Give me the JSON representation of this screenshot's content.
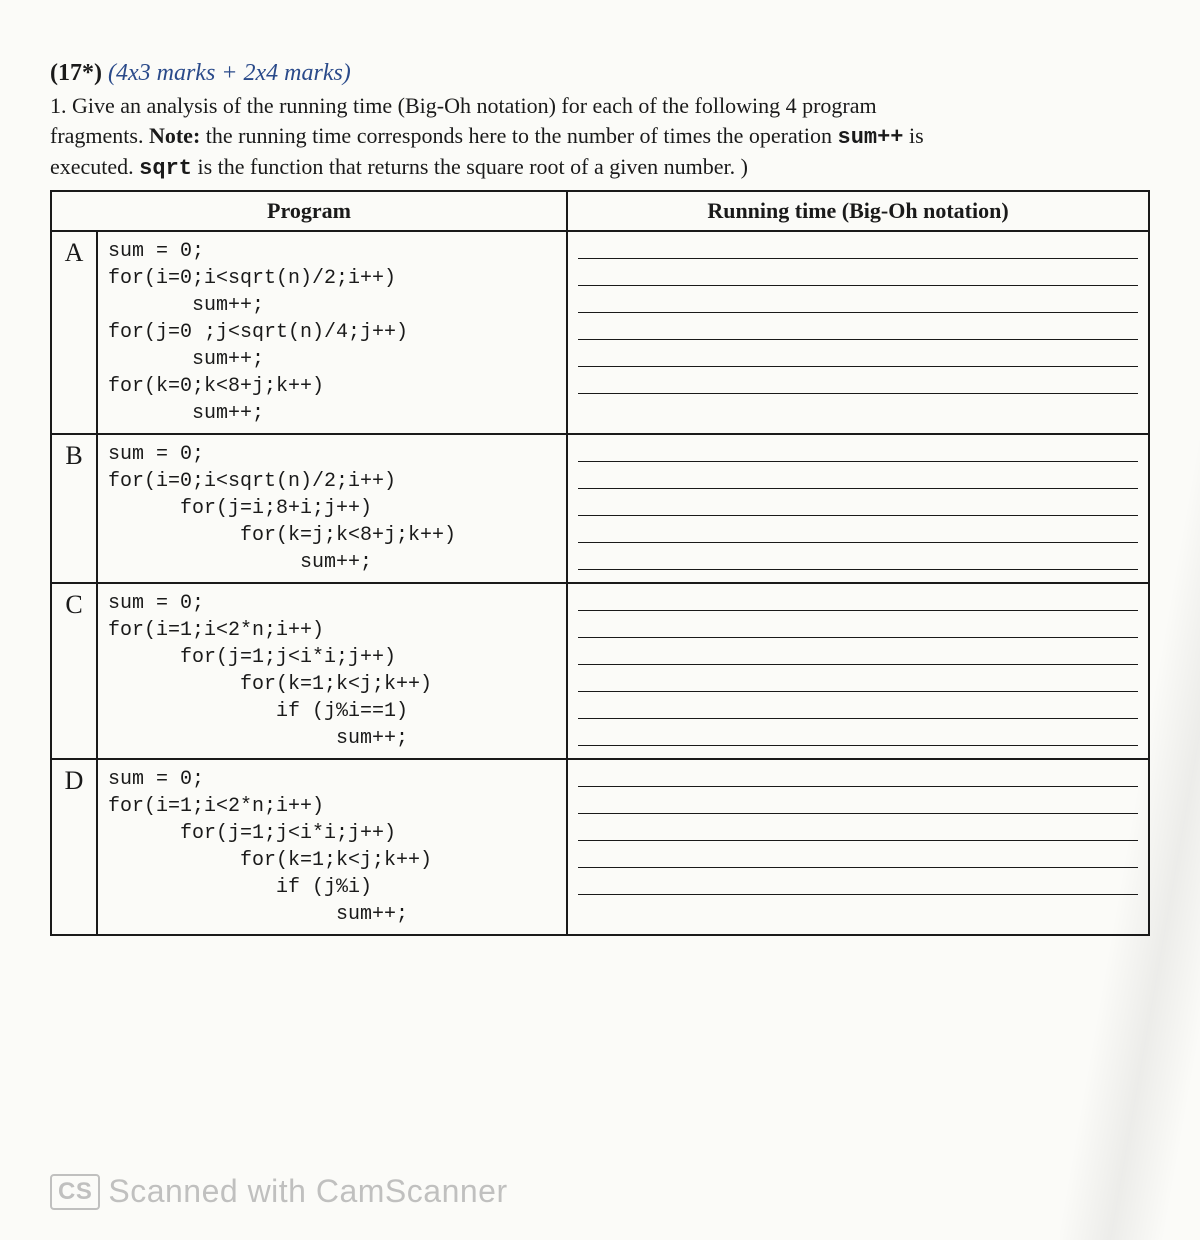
{
  "header": {
    "number_bold": "(17*)",
    "marks_italic": "(4x3 marks + 2x4 marks)",
    "intro_line1_pre": "1.  Give an analysis of the running time (Big-Oh notation) for each of the following 4 program",
    "intro_line2": "fragments. ",
    "note_label": "Note:",
    "intro_line2_post": " the running time corresponds here to the number of times the operation ",
    "code_sumpp": "sum++",
    "intro_line2_end": " is",
    "intro_line3_pre": "executed. ",
    "code_sqrt": "sqrt",
    "intro_line3_post": " is the function that returns the square root of a given number.  )"
  },
  "table": {
    "col_program": "Program",
    "col_running": "Running time (Big-Oh notation)",
    "rows": [
      {
        "label": "A",
        "code": "sum = 0;\nfor(i=0;i<sqrt(n)/2;i++)\n       sum++;\nfor(j=0 ;j<sqrt(n)/4;j++)\n       sum++;\nfor(k=0;k<8+j;k++)\n       sum++;",
        "answer_lines": 6
      },
      {
        "label": "B",
        "code": "sum = 0;\nfor(i=0;i<sqrt(n)/2;i++)\n      for(j=i;8+i;j++)\n           for(k=j;k<8+j;k++)\n                sum++;",
        "answer_lines": 5
      },
      {
        "label": "C",
        "code": "sum = 0;\nfor(i=1;i<2*n;i++)\n      for(j=1;j<i*i;j++)\n           for(k=1;k<j;k++)\n              if (j%i==1)\n                   sum++;",
        "answer_lines": 6
      },
      {
        "label": "D",
        "code": "sum = 0;\nfor(i=1;i<2*n;i++)\n      for(j=1;j<i*i;j++)\n           for(k=1;k<j;k++)\n              if (j%i)\n                   sum++;",
        "answer_lines": 5
      }
    ]
  },
  "watermark": {
    "cs": "CS",
    "text": "Scanned with CamScanner"
  },
  "colors": {
    "page_bg": "#fbfbf8",
    "text": "#1a1a1a",
    "marks": "#2a4a8a",
    "watermark": "#9a9a9a",
    "border": "#1a1a1a"
  },
  "typography": {
    "body_font": "Georgia, Times New Roman, serif",
    "code_font": "Courier New, monospace",
    "title_fontsize_pt": 18,
    "body_fontsize_pt": 16,
    "code_fontsize_pt": 15
  }
}
